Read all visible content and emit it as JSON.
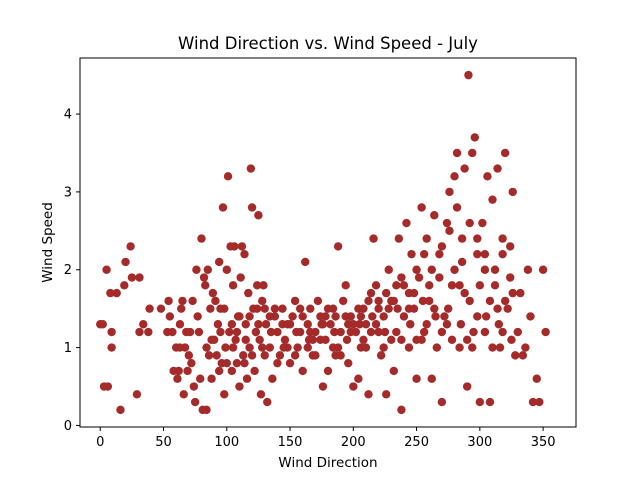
{
  "chart_data": {
    "type": "scatter",
    "title": "Wind Direction vs. Wind Speed - July",
    "xlabel": "Wind Direction",
    "ylabel": "Wind Speed",
    "xlim": [
      -16,
      376
    ],
    "ylim": [
      -0.02,
      4.72
    ],
    "xticks": [
      0,
      50,
      100,
      150,
      200,
      250,
      300,
      350
    ],
    "yticks": [
      0,
      1,
      2,
      3,
      4
    ],
    "grid": false,
    "legend": "none",
    "marker_color": "#a52a2a",
    "points": [
      [
        0,
        1.3
      ],
      [
        2,
        1.3
      ],
      [
        3,
        0.5
      ],
      [
        6,
        0.5
      ],
      [
        5,
        2.0
      ],
      [
        8,
        1.7
      ],
      [
        9,
        1.2
      ],
      [
        9,
        1.0
      ],
      [
        13,
        1.7
      ],
      [
        16,
        0.2
      ],
      [
        19,
        1.8
      ],
      [
        20,
        2.1
      ],
      [
        24,
        2.3
      ],
      [
        25,
        1.9
      ],
      [
        29,
        0.4
      ],
      [
        31,
        1.9
      ],
      [
        31,
        1.2
      ],
      [
        34,
        1.3
      ],
      [
        38,
        1.2
      ],
      [
        39,
        1.5
      ],
      [
        48,
        1.5
      ],
      [
        53,
        1.2
      ],
      [
        54,
        1.6
      ],
      [
        55,
        1.4
      ],
      [
        57,
        1.2
      ],
      [
        58,
        0.7
      ],
      [
        60,
        1.0
      ],
      [
        61,
        0.6
      ],
      [
        62,
        0.7
      ],
      [
        63,
        1.3
      ],
      [
        63,
        1.0
      ],
      [
        64,
        1.5
      ],
      [
        65,
        1.6
      ],
      [
        66,
        0.4
      ],
      [
        67,
        1.0
      ],
      [
        68,
        1.2
      ],
      [
        69,
        0.7
      ],
      [
        70,
        0.9
      ],
      [
        71,
        1.2
      ],
      [
        72,
        0.8
      ],
      [
        73,
        1.6
      ],
      [
        74,
        0.5
      ],
      [
        75,
        0.3
      ],
      [
        76,
        2.0
      ],
      [
        77,
        1.4
      ],
      [
        78,
        1.2
      ],
      [
        79,
        0.6
      ],
      [
        80,
        2.4
      ],
      [
        81,
        0.2
      ],
      [
        82,
        1.9
      ],
      [
        83,
        1.8
      ],
      [
        84,
        0.2
      ],
      [
        85,
        2.0
      ],
      [
        86,
        0.9
      ],
      [
        87,
        1.5
      ],
      [
        88,
        0.6
      ],
      [
        89,
        1.7
      ],
      [
        90,
        1.1
      ],
      [
        91,
        1.6
      ],
      [
        92,
        0.9
      ],
      [
        93,
        1.3
      ],
      [
        94,
        2.1
      ],
      [
        95,
        1.5
      ],
      [
        96,
        0.8
      ],
      [
        97,
        2.8
      ],
      [
        98,
        0.4
      ],
      [
        99,
        1.0
      ],
      [
        100,
        2.0
      ],
      [
        101,
        3.2
      ],
      [
        102,
        1.2
      ],
      [
        103,
        2.3
      ],
      [
        104,
        0.7
      ],
      [
        105,
        1.8
      ],
      [
        106,
        2.3
      ],
      [
        107,
        1.1
      ],
      [
        108,
        0.8
      ],
      [
        109,
        1.4
      ],
      [
        110,
        0.5
      ],
      [
        111,
        1.9
      ],
      [
        112,
        2.3
      ],
      [
        113,
        0.9
      ],
      [
        114,
        2.2
      ],
      [
        115,
        1.3
      ],
      [
        116,
        0.6
      ],
      [
        117,
        1.7
      ],
      [
        118,
        1.0
      ],
      [
        119,
        3.3
      ],
      [
        120,
        2.8
      ],
      [
        121,
        1.5
      ],
      [
        122,
        0.7
      ],
      [
        123,
        1.2
      ],
      [
        124,
        1.8
      ],
      [
        125,
        2.7
      ],
      [
        126,
        1.1
      ],
      [
        127,
        0.4
      ],
      [
        128,
        1.6
      ],
      [
        129,
        1.8
      ],
      [
        130,
        0.9
      ],
      [
        131,
        1.3
      ],
      [
        132,
        0.3
      ],
      [
        134,
        1.0
      ],
      [
        136,
        0.6
      ],
      [
        138,
        1.4
      ],
      [
        140,
        1.2
      ],
      [
        142,
        0.9
      ],
      [
        144,
        1.5
      ],
      [
        146,
        1.1
      ],
      [
        148,
        1.3
      ],
      [
        150,
        0.8
      ],
      [
        152,
        1.4
      ],
      [
        154,
        1.6
      ],
      [
        156,
        1.0
      ],
      [
        158,
        1.2
      ],
      [
        160,
        0.7
      ],
      [
        162,
        2.1
      ],
      [
        164,
        1.3
      ],
      [
        166,
        1.5
      ],
      [
        168,
        0.9
      ],
      [
        170,
        1.2
      ],
      [
        172,
        1.6
      ],
      [
        174,
        1.4
      ],
      [
        176,
        0.5
      ],
      [
        178,
        1.1
      ],
      [
        180,
        0.7
      ],
      [
        182,
        1.3
      ],
      [
        184,
        1.5
      ],
      [
        186,
        0.9
      ],
      [
        188,
        2.3
      ],
      [
        190,
        1.2
      ],
      [
        192,
        1.6
      ],
      [
        194,
        1.8
      ],
      [
        196,
        0.8
      ],
      [
        198,
        1.4
      ],
      [
        200,
        0.5
      ],
      [
        202,
        1.2
      ],
      [
        204,
        0.6
      ],
      [
        206,
        1.0
      ],
      [
        208,
        1.5
      ],
      [
        210,
        1.3
      ],
      [
        212,
        0.4
      ],
      [
        214,
        1.7
      ],
      [
        216,
        2.4
      ],
      [
        218,
        1.8
      ],
      [
        220,
        1.2
      ],
      [
        222,
        0.9
      ],
      [
        224,
        1.4
      ],
      [
        226,
        0.4
      ],
      [
        228,
        2.0
      ],
      [
        230,
        1.6
      ],
      [
        232,
        0.7
      ],
      [
        234,
        1.2
      ],
      [
        236,
        2.4
      ],
      [
        238,
        0.2
      ],
      [
        240,
        1.8
      ],
      [
        242,
        2.6
      ],
      [
        244,
        1.0
      ],
      [
        246,
        2.2
      ],
      [
        248,
        1.5
      ],
      [
        250,
        0.6
      ],
      [
        252,
        1.9
      ],
      [
        254,
        2.8
      ],
      [
        256,
        1.2
      ],
      [
        258,
        2.4
      ],
      [
        260,
        1.6
      ],
      [
        262,
        0.6
      ],
      [
        264,
        2.7
      ],
      [
        266,
        1.0
      ],
      [
        268,
        2.2
      ],
      [
        270,
        0.3
      ],
      [
        272,
        1.4
      ],
      [
        274,
        2.6
      ],
      [
        276,
        3.0
      ],
      [
        278,
        1.8
      ],
      [
        280,
        3.2
      ],
      [
        282,
        3.5
      ],
      [
        284,
        1.0
      ],
      [
        286,
        2.4
      ],
      [
        288,
        3.3
      ],
      [
        290,
        0.5
      ],
      [
        291,
        4.5
      ],
      [
        292,
        1.6
      ],
      [
        294,
        3.5
      ],
      [
        296,
        3.7
      ],
      [
        298,
        2.2
      ],
      [
        300,
        0.3
      ],
      [
        302,
        2.6
      ],
      [
        304,
        1.2
      ],
      [
        306,
        3.2
      ],
      [
        308,
        0.3
      ],
      [
        310,
        2.9
      ],
      [
        312,
        1.8
      ],
      [
        314,
        3.3
      ],
      [
        316,
        1.0
      ],
      [
        318,
        2.4
      ],
      [
        320,
        3.5
      ],
      [
        322,
        1.5
      ],
      [
        324,
        2.3
      ],
      [
        326,
        3.0
      ],
      [
        328,
        0.9
      ],
      [
        330,
        1.2
      ],
      [
        332,
        1.7
      ],
      [
        334,
        0.9
      ],
      [
        336,
        1.0
      ],
      [
        338,
        2.0
      ],
      [
        340,
        1.4
      ],
      [
        342,
        0.3
      ],
      [
        345,
        0.6
      ],
      [
        347,
        0.3
      ],
      [
        350,
        2.0
      ],
      [
        352,
        1.2
      ],
      [
        95,
        1.2
      ],
      [
        105,
        1.0
      ],
      [
        115,
        1.1
      ],
      [
        125,
        1.3
      ],
      [
        135,
        1.2
      ],
      [
        145,
        1.0
      ],
      [
        155,
        1.2
      ],
      [
        165,
        1.1
      ],
      [
        175,
        1.3
      ],
      [
        185,
        1.2
      ],
      [
        195,
        1.1
      ],
      [
        205,
        1.3
      ],
      [
        215,
        1.4
      ],
      [
        225,
        1.2
      ],
      [
        235,
        1.5
      ],
      [
        245,
        1.3
      ],
      [
        255,
        1.6
      ],
      [
        265,
        1.4
      ],
      [
        275,
        1.5
      ],
      [
        285,
        1.3
      ],
      [
        295,
        1.2
      ],
      [
        305,
        1.4
      ],
      [
        315,
        1.3
      ],
      [
        325,
        1.1
      ],
      [
        100,
        0.8
      ],
      [
        110,
        1.4
      ],
      [
        120,
        0.9
      ],
      [
        130,
        1.5
      ],
      [
        140,
        0.8
      ],
      [
        150,
        1.3
      ],
      [
        160,
        1.4
      ],
      [
        170,
        0.9
      ],
      [
        180,
        1.5
      ],
      [
        190,
        0.9
      ],
      [
        200,
        1.3
      ],
      [
        210,
        1.0
      ],
      [
        220,
        1.6
      ],
      [
        230,
        1.1
      ],
      [
        240,
        1.4
      ],
      [
        250,
        1.1
      ],
      [
        260,
        1.8
      ],
      [
        270,
        1.2
      ],
      [
        280,
        2.0
      ],
      [
        290,
        1.1
      ],
      [
        300,
        1.8
      ],
      [
        310,
        1.0
      ],
      [
        320,
        1.6
      ],
      [
        88,
        1.1
      ],
      [
        98,
        1.5
      ],
      [
        108,
        1.2
      ],
      [
        118,
        1.4
      ],
      [
        128,
        1.0
      ],
      [
        138,
        1.5
      ],
      [
        148,
        1.0
      ],
      [
        158,
        1.5
      ],
      [
        168,
        1.1
      ],
      [
        178,
        1.4
      ],
      [
        188,
        1.0
      ],
      [
        198,
        1.2
      ],
      [
        208,
        1.1
      ],
      [
        218,
        1.3
      ],
      [
        228,
        1.5
      ],
      [
        238,
        1.1
      ],
      [
        248,
        1.7
      ],
      [
        258,
        1.3
      ],
      [
        268,
        1.9
      ],
      [
        278,
        1.1
      ],
      [
        288,
        1.7
      ],
      [
        298,
        1.4
      ],
      [
        308,
        1.6
      ],
      [
        318,
        1.2
      ],
      [
        84,
        1.0
      ],
      [
        94,
        0.7
      ],
      [
        104,
        1.3
      ],
      [
        114,
        0.8
      ],
      [
        124,
        1.5
      ],
      [
        134,
        1.4
      ],
      [
        144,
        1.3
      ],
      [
        154,
        0.9
      ],
      [
        164,
        1.0
      ],
      [
        174,
        1.1
      ],
      [
        184,
        1.0
      ],
      [
        194,
        1.4
      ],
      [
        204,
        1.5
      ],
      [
        214,
        1.2
      ],
      [
        224,
        1.0
      ],
      [
        234,
        1.8
      ],
      [
        244,
        1.5
      ],
      [
        254,
        1.1
      ],
      [
        264,
        1.5
      ],
      [
        274,
        1.3
      ],
      [
        284,
        1.8
      ],
      [
        294,
        1.0
      ],
      [
        304,
        2.0
      ],
      [
        314,
        1.5
      ],
      [
        324,
        1.9
      ],
      [
        270,
        2.3
      ],
      [
        276,
        2.5
      ],
      [
        282,
        2.8
      ],
      [
        286,
        2.1
      ],
      [
        292,
        2.6
      ],
      [
        298,
        2.4
      ],
      [
        304,
        2.2
      ],
      [
        312,
        2.0
      ],
      [
        318,
        2.2
      ],
      [
        326,
        1.7
      ],
      [
        262,
        2.0
      ],
      [
        256,
        2.2
      ],
      [
        250,
        2.0
      ],
      [
        244,
        1.7
      ],
      [
        238,
        1.9
      ],
      [
        232,
        1.6
      ],
      [
        226,
        1.7
      ],
      [
        220,
        1.5
      ],
      [
        212,
        1.6
      ],
      [
        206,
        1.4
      ],
      [
        196,
        1.3
      ],
      [
        186,
        1.4
      ],
      [
        176,
        1.3
      ],
      [
        166,
        1.2
      ]
    ]
  }
}
